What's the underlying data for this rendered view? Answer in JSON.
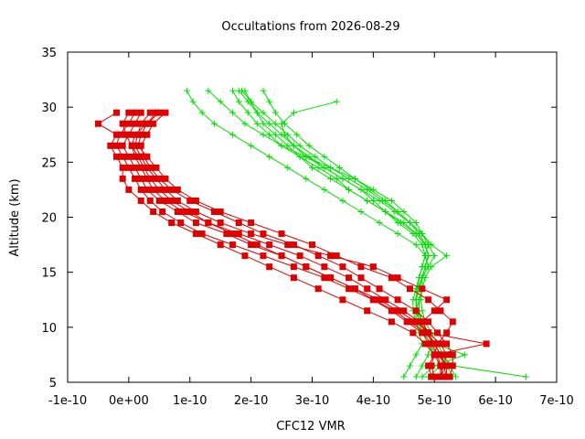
{
  "chart_data": {
    "type": "line",
    "title": "Occultations from 2026-08-29",
    "xlabel": "CFC12 VMR",
    "ylabel": "Altitude (km)",
    "xlim": [
      -1e-10,
      7e-10
    ],
    "ylim": [
      5,
      35
    ],
    "x_ticks": [
      "-1e-10",
      "0e+00",
      "1e-10",
      "2e-10",
      "3e-10",
      "4e-10",
      "5e-10",
      "6e-10",
      "7e-10"
    ],
    "y_ticks": [
      "5",
      "10",
      "15",
      "20",
      "25",
      "30",
      "35"
    ],
    "grid": false,
    "legend": "none",
    "series": [
      {
        "color": "#00e000",
        "marker": "plus",
        "profiles": [
          {
            "y": [
              31.5,
              30.5,
              29.5,
              28.5,
              27.5,
              26.5,
              25.5,
              24.5,
              23.5,
              22.5,
              21.5,
              20.5,
              19.5,
              18.5,
              17.5,
              16.5,
              15.5,
              14.5,
              13.5,
              12.5,
              11.5,
              10.5,
              9.5,
              8.5,
              7.5,
              6.5,
              5.5
            ],
            "x": [
              9.5e-11,
              1.05e-10,
              1.2e-10,
              1.4e-10,
              1.7e-10,
              2e-10,
              2.3e-10,
              2.6e-10,
              2.9e-10,
              3.2e-10,
              3.5e-10,
              3.8e-10,
              4.1e-10,
              4.4e-10,
              4.7e-10,
              4.85e-10,
              4.9e-10,
              4.8e-10,
              4.75e-10,
              4.7e-10,
              4.7e-10,
              4.75e-10,
              4.85e-10,
              5e-10,
              5.1e-10,
              5.3e-10,
              6.5e-10
            ]
          },
          {
            "y": [
              31.5,
              30.5,
              29.5,
              28.5,
              27.5,
              26.5,
              25.5,
              24.5,
              23.5,
              22.5,
              21.5,
              20.5,
              19.5,
              18.5,
              17.5,
              16.5,
              15.5,
              14.5,
              13.5,
              12.5,
              11.5,
              10.5,
              9.5,
              8.5,
              7.5,
              6.5,
              5.5
            ],
            "x": [
              1.7e-10,
              1.8e-10,
              1.95e-10,
              2.1e-10,
              2.3e-10,
              2.5e-10,
              2.8e-10,
              3.1e-10,
              3.4e-10,
              3.6e-10,
              3.9e-10,
              4.2e-10,
              4.5e-10,
              4.7e-10,
              4.85e-10,
              4.9e-10,
              4.85e-10,
              4.8e-10,
              4.75e-10,
              4.7e-10,
              4.72e-10,
              4.8e-10,
              4.9e-10,
              5e-10,
              5.1e-10,
              5.2e-10,
              5.1e-10
            ]
          },
          {
            "y": [
              31.5,
              30.5,
              29.5,
              28.5,
              27.5,
              26.5,
              25.5,
              24.5,
              23.5,
              22.5,
              21.5,
              20.5,
              19.5,
              18.5,
              17.5,
              16.5,
              15.5,
              14.5,
              13.5,
              12.5,
              11.5,
              10.5,
              9.5,
              8.5,
              7.5,
              6.5,
              5.5
            ],
            "x": [
              1.3e-10,
              1.5e-10,
              1.7e-10,
              1.9e-10,
              2.2e-10,
              2.5e-10,
              2.9e-10,
              3.3e-10,
              3.7e-10,
              4e-10,
              4.3e-10,
              4.5e-10,
              4.7e-10,
              4.8e-10,
              4.9e-10,
              5e-10,
              4.9e-10,
              4.8e-10,
              4.8e-10,
              4.75e-10,
              4.75e-10,
              4.8e-10,
              4.9e-10,
              4.95e-10,
              4.9e-10,
              4.8e-10,
              4.7e-10
            ]
          },
          {
            "y": [
              31.5,
              30.5,
              29.5,
              28.5,
              27.5,
              26.5,
              25.5,
              24.5,
              23.5,
              22.5,
              21.5,
              20.5,
              19.5,
              18.5,
              17.5,
              16.5,
              15.5,
              14.5,
              13.5,
              12.5,
              11.5,
              10.5,
              9.5,
              8.5,
              7.5,
              6.5,
              5.5
            ],
            "x": [
              1.8e-10,
              1.95e-10,
              2.1e-10,
              2.3e-10,
              2.5e-10,
              2.7e-10,
              2.95e-10,
              3.2e-10,
              3.5e-10,
              3.8e-10,
              4.1e-10,
              4.35e-10,
              4.6e-10,
              4.8e-10,
              4.95e-10,
              5.2e-10,
              4.95e-10,
              4.85e-10,
              4.8e-10,
              4.75e-10,
              4.7e-10,
              4.7e-10,
              4.75e-10,
              4.8e-10,
              4.7e-10,
              4.6e-10,
              4.5e-10
            ]
          },
          {
            "y": [
              31.5,
              30.5,
              29.5,
              28.5,
              27.5,
              26.5,
              25.5,
              24.5,
              23.5,
              22.5,
              21.5,
              20.5,
              19.5,
              18.5,
              17.5,
              16.5,
              15.5,
              14.5,
              13.5,
              12.5,
              11.5,
              10.5,
              9.5,
              8.5,
              7.5,
              6.5,
              5.5
            ],
            "x": [
              1.9e-10,
              2e-10,
              2.1e-10,
              2.2e-10,
              2.4e-10,
              2.6e-10,
              2.8e-10,
              3e-10,
              3.3e-10,
              3.6e-10,
              3.9e-10,
              4.2e-10,
              4.45e-10,
              4.7e-10,
              4.85e-10,
              4.9e-10,
              4.85e-10,
              4.8e-10,
              4.72e-10,
              4.7e-10,
              4.72e-10,
              4.75e-10,
              4.8e-10,
              4.9e-10,
              5.05e-10,
              5.2e-10,
              5.3e-10
            ]
          },
          {
            "y": [
              30.5,
              29.5,
              28.5,
              27.5,
              26.5,
              25.5,
              24.5,
              23.5,
              22.5,
              21.5,
              20.5,
              19.5,
              18.5,
              17.5,
              16.5,
              15.5,
              14.5,
              13.5,
              12.5,
              11.5,
              10.5,
              9.5,
              8.5,
              7.5,
              6.5,
              5.5
            ],
            "x": [
              3.4e-10,
              2.7e-10,
              2.5e-10,
              2.55e-10,
              2.7e-10,
              2.9e-10,
              3.2e-10,
              3.5e-10,
              3.8e-10,
              4e-10,
              4.2e-10,
              4.4e-10,
              4.65e-10,
              4.8e-10,
              4.85e-10,
              4.8e-10,
              4.75e-10,
              4.7e-10,
              4.65e-10,
              4.65e-10,
              4.7e-10,
              4.8e-10,
              4.9e-10,
              5e-10,
              5.1e-10,
              4.9e-10
            ]
          },
          {
            "y": [
              31.5,
              30.5,
              29.5,
              28.5,
              27.5,
              26.5,
              25.5,
              24.5,
              23.5,
              22.5,
              21.5,
              20.5,
              19.5,
              18.5,
              17.5,
              16.5,
              15.5,
              14.5,
              13.5,
              12.5,
              11.5,
              10.5,
              9.5,
              8.5,
              7.5,
              6.5,
              5.5
            ],
            "x": [
              2.2e-10,
              2.3e-10,
              2.4e-10,
              2.55e-10,
              2.75e-10,
              2.95e-10,
              3.2e-10,
              3.45e-10,
              3.7e-10,
              3.95e-10,
              4.2e-10,
              4.4e-10,
              4.6e-10,
              4.8e-10,
              4.9e-10,
              4.85e-10,
              4.8e-10,
              4.75e-10,
              4.72e-10,
              4.7e-10,
              4.72e-10,
              4.8e-10,
              4.9e-10,
              5e-10,
              5.5e-10,
              5e-10,
              4.8e-10
            ]
          },
          {
            "y": [
              31.5,
              30.5,
              29.5,
              28.5,
              27.5,
              26.5,
              25.5,
              24.5,
              23.5,
              22.5,
              21.5,
              20.5,
              19.5,
              18.5,
              17.5,
              16.5,
              15.5,
              14.5,
              13.5,
              12.5,
              11.5,
              10.5,
              9.5,
              8.5,
              7.5,
              6.5,
              5.5
            ],
            "x": [
              1.85e-10,
              2e-10,
              2.2e-10,
              2.4e-10,
              2.6e-10,
              2.8e-10,
              3.05e-10,
              3.3e-10,
              3.6e-10,
              3.9e-10,
              4.15e-10,
              4.4e-10,
              4.6e-10,
              4.75e-10,
              4.85e-10,
              4.9e-10,
              4.85e-10,
              4.8e-10,
              4.8e-10,
              4.78e-10,
              4.8e-10,
              4.85e-10,
              4.95e-10,
              5.05e-10,
              5.15e-10,
              5.25e-10,
              5.35e-10
            ]
          }
        ]
      },
      {
        "color": "#e00000",
        "marker": "square",
        "profiles": [
          {
            "y": [
              29.5,
              28.5,
              27.5,
              26.5,
              25.5,
              24.5,
              23.5,
              22.5,
              21.5,
              20.5,
              19.5,
              18.5,
              17.5,
              16.5,
              15.5,
              14.5,
              13.5,
              12.5,
              11.5,
              10.5,
              9.5,
              8.5,
              7.5,
              6.5,
              5.5
            ],
            "x": [
              5e-11,
              3e-11,
              1e-11,
              5e-12,
              1e-11,
              2e-11,
              3e-11,
              4e-11,
              6e-11,
              9e-11,
              1.3e-10,
              1.8e-10,
              2.3e-10,
              2.8e-10,
              3.2e-10,
              3.6e-10,
              3.9e-10,
              4.2e-10,
              4.5e-10,
              4.75e-10,
              4.9e-10,
              5e-10,
              5.1e-10,
              5.2e-10,
              5.2e-10
            ]
          },
          {
            "y": [
              29.5,
              28.5,
              27.5,
              26.5,
              25.5,
              24.5,
              23.5,
              22.5,
              21.5,
              20.5,
              19.5,
              18.5,
              17.5,
              16.5,
              15.5,
              14.5,
              13.5,
              12.5,
              11.5,
              10.5,
              9.5,
              8.5,
              7.5,
              6.5,
              5.5
            ],
            "x": [
              -2e-11,
              -5e-11,
              -2e-11,
              -3e-11,
              -2e-11,
              -1e-11,
              -1e-11,
              0.0,
              2e-11,
              4e-11,
              7e-11,
              1.1e-10,
              1.5e-10,
              1.9e-10,
              2.3e-10,
              2.7e-10,
              3.1e-10,
              3.5e-10,
              3.9e-10,
              4.3e-10,
              4.65e-10,
              4.85e-10,
              5e-10,
              5.1e-10,
              5.1e-10
            ]
          },
          {
            "y": [
              29.5,
              28.5,
              27.5,
              26.5,
              25.5,
              24.5,
              23.5,
              22.5,
              21.5,
              20.5,
              19.5,
              18.5,
              17.5,
              16.5,
              15.5,
              14.5,
              13.5,
              12.5,
              11.5,
              10.5,
              9.5,
              8.5,
              7.5,
              6.5,
              5.5
            ],
            "x": [
              2e-11,
              1e-11,
              0.0,
              -1e-11,
              0.0,
              1e-11,
              2e-11,
              3e-11,
              5e-11,
              8e-11,
              1.1e-10,
              1.6e-10,
              2e-10,
              2.5e-10,
              2.9e-10,
              3.3e-10,
              3.7e-10,
              4e-10,
              4.35e-10,
              4.6e-10,
              4.85e-10,
              5e-10,
              5.1e-10,
              5.15e-10,
              5.2e-10
            ]
          },
          {
            "y": [
              29.5,
              28.5,
              27.5,
              26.5,
              25.5,
              24.5,
              23.5,
              22.5,
              21.5,
              20.5,
              19.5,
              18.5,
              17.5,
              16.5,
              15.5,
              14.5,
              13.5,
              12.5,
              11.5,
              10.5,
              9.5,
              8.5,
              7.5,
              6.5,
              5.5
            ],
            "x": [
              6e-11,
              4e-11,
              3e-11,
              2e-11,
              2.5e-11,
              3.5e-11,
              5e-11,
              7e-11,
              1e-10,
              1.4e-10,
              1.8e-10,
              2.2e-10,
              2.7e-10,
              3.1e-10,
              3.5e-10,
              3.8e-10,
              4.1e-10,
              4.4e-10,
              4.7e-10,
              4.9e-10,
              5.05e-10,
              5.2e-10,
              5.3e-10,
              5.3e-10,
              5.25e-10
            ]
          },
          {
            "y": [
              29.5,
              28.5,
              27.5,
              26.5,
              25.5,
              24.5,
              23.5,
              22.5,
              21.5,
              20.5,
              19.5,
              18.5,
              17.5,
              16.5,
              15.5,
              14.5,
              13.5,
              12.5,
              11.5,
              10.5,
              9.5,
              8.5,
              7.5,
              6.5,
              5.5
            ],
            "x": [
              0.0,
              -1e-11,
              -5e-12,
              5e-12,
              1.5e-11,
              2.5e-11,
              3.5e-11,
              5e-11,
              7e-11,
              1e-10,
              1.3e-10,
              1.7e-10,
              2.1e-10,
              2.5e-10,
              2.9e-10,
              3.3e-10,
              3.7e-10,
              4.1e-10,
              4.4e-10,
              4.7e-10,
              4.9e-10,
              5.85e-10,
              5e-10,
              4.9e-10,
              4.95e-10
            ]
          },
          {
            "y": [
              29.5,
              28.5,
              27.5,
              26.5,
              25.5,
              24.5,
              23.5,
              22.5,
              21.5,
              20.5,
              19.5,
              18.5,
              17.5,
              16.5,
              15.5,
              14.5,
              13.5,
              12.5,
              11.5,
              10.5,
              9.5,
              8.5,
              7.5,
              6.5,
              5.5
            ],
            "x": [
              3.5e-11,
              2e-11,
              1.5e-11,
              1e-11,
              2e-11,
              3e-11,
              4.5e-11,
              6e-11,
              8e-11,
              1.1e-10,
              1.5e-10,
              2e-10,
              2.6e-10,
              3.3e-10,
              4e-10,
              4.4e-10,
              4.8e-10,
              5.2e-10,
              5e-10,
              4.8e-10,
              4.9e-10,
              5.1e-10,
              5.2e-10,
              5.15e-10,
              5.1e-10
            ]
          },
          {
            "y": [
              29.5,
              28.5,
              27.5,
              26.5,
              25.5,
              24.5,
              23.5,
              22.5,
              21.5,
              20.5,
              19.5,
              18.5,
              17.5,
              16.5,
              15.5,
              14.5,
              13.5,
              12.5,
              11.5,
              10.5,
              9.5,
              8.5,
              7.5,
              6.5,
              5.5
            ],
            "x": [
              1e-11,
              0.0,
              -1.5e-11,
              -2e-11,
              -1e-11,
              0.0,
              1e-11,
              2e-11,
              3.5e-11,
              5.5e-11,
              8.5e-11,
              1.2e-10,
              1.7e-10,
              2.2e-10,
              2.7e-10,
              3.2e-10,
              3.6e-10,
              4e-10,
              4.3e-10,
              4.55e-10,
              4.8e-10,
              4.95e-10,
              5.05e-10,
              5.1e-10,
              5.15e-10
            ]
          },
          {
            "y": [
              29.5,
              28.5,
              27.5,
              26.5,
              25.5,
              24.5,
              23.5,
              22.5,
              21.5,
              20.5,
              19.5,
              18.5,
              17.5,
              16.5,
              15.5,
              14.5,
              13.5,
              12.5,
              11.5,
              10.5,
              9.5,
              8.5,
              7.5,
              6.5,
              5.5
            ],
            "x": [
              4.5e-11,
              3e-11,
              2e-11,
              1.5e-11,
              3e-11,
              4.5e-11,
              6e-11,
              8e-11,
              1.1e-10,
              1.5e-10,
              2e-10,
              2.5e-10,
              3e-10,
              3.4e-10,
              3.8e-10,
              4.3e-10,
              4.6e-10,
              4.9e-10,
              5.1e-10,
              5.3e-10,
              5.2e-10,
              5.05e-10,
              5e-10,
              4.95e-10,
              5e-10
            ]
          }
        ]
      }
    ]
  }
}
